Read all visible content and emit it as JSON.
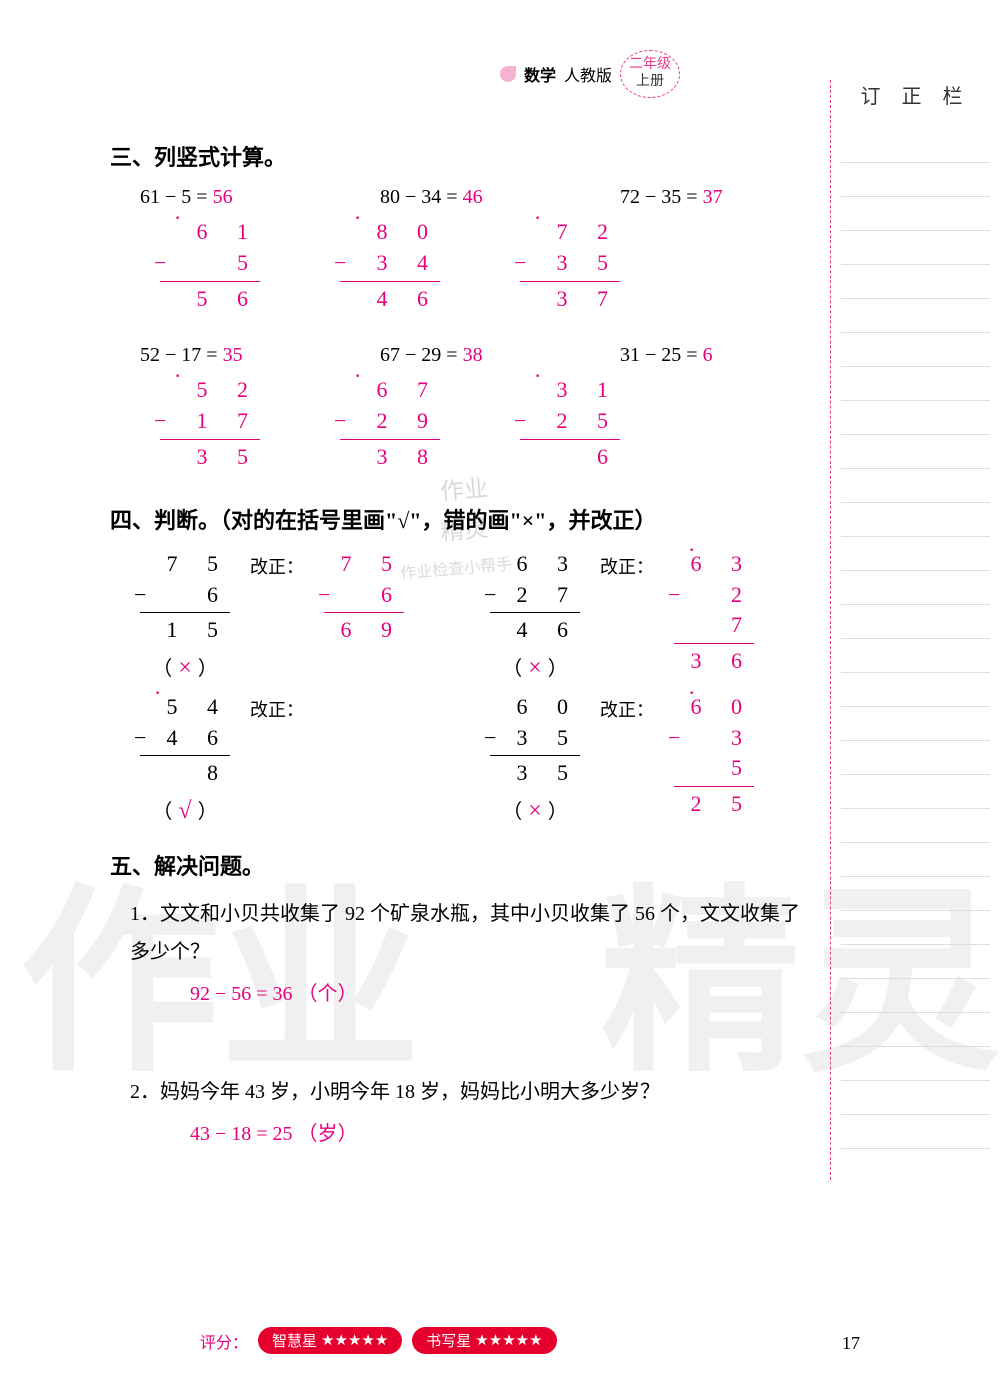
{
  "header": {
    "subject": "数学",
    "edition": "人教版",
    "grade": "二年级",
    "volume": "上册"
  },
  "sidebar_title": "订 正 栏",
  "section3": {
    "title": "三、列竖式计算。",
    "problems": [
      [
        {
          "eq": "61 − 5 =",
          "ans": "56",
          "top": "6 1",
          "mid_sign": "−",
          "mid": "5",
          "bot": "5 6",
          "borrow": true
        },
        {
          "eq": "80 − 34 =",
          "ans": "46",
          "top": "8 0",
          "mid_sign": "−",
          "mid": "3 4",
          "bot": "4 6",
          "borrow": true
        },
        {
          "eq": "72 − 35 =",
          "ans": "37",
          "top": "7 2",
          "mid_sign": "−",
          "mid": "3 5",
          "bot": "3 7",
          "borrow": true
        }
      ],
      [
        {
          "eq": "52 − 17 =",
          "ans": "35",
          "top": "5 2",
          "mid_sign": "−",
          "mid": "1 7",
          "bot": "3 5",
          "borrow": true
        },
        {
          "eq": "67 − 29 =",
          "ans": "38",
          "top": "6 7",
          "mid_sign": "−",
          "mid": "2 9",
          "bot": "3 8",
          "borrow": true
        },
        {
          "eq": "31 − 25 =",
          "ans": "6",
          "top": "3 1",
          "mid_sign": "−",
          "mid": "2 5",
          "bot": "6",
          "borrow": true
        }
      ]
    ]
  },
  "section4": {
    "title": "四、判断。（对的在括号里画\"√\"，错的画\"×\"，并改正）",
    "correction_label": "改正：",
    "rows": [
      [
        {
          "orig": {
            "top": "7  5",
            "mid_sign": "−",
            "mid": "6   ",
            "bot": "1  5"
          },
          "corr": {
            "top": "7 5",
            "mid_sign": "−",
            "mid": "6",
            "bot": "6 9",
            "borrow": false
          },
          "mark": "×"
        },
        {
          "orig": {
            "top": "6  3",
            "mid_sign": "−",
            "mid": "2  7",
            "bot": "4  6"
          },
          "corr": {
            "top": "6 3",
            "mid_sign": "−",
            "mid": "2 7",
            "bot": "3 6",
            "borrow": true
          },
          "mark": "×"
        }
      ],
      [
        {
          "orig": {
            "top": "5  4",
            "mid_sign": "−",
            "mid": "4  6",
            "bot": "8",
            "borrow": true
          },
          "corr": null,
          "mark": "√"
        },
        {
          "orig": {
            "top": "6  0",
            "mid_sign": "−",
            "mid": "3  5",
            "bot": "3  5"
          },
          "corr": {
            "top": "6 0",
            "mid_sign": "−",
            "mid": "3 5",
            "bot": "2 5",
            "borrow": true
          },
          "mark": "×"
        }
      ]
    ]
  },
  "section5": {
    "title": "五、解决问题。",
    "problems": [
      {
        "text": "1．文文和小贝共收集了 92 个矿泉水瓶，其中小贝收集了 56 个，文文收集了多少个？",
        "answer": "92 − 56 = 36 （个）"
      },
      {
        "text": "2．妈妈今年 43 岁，小明今年 18 岁，妈妈比小明大多少岁？",
        "answer": "43 − 18 = 25 （岁）"
      }
    ]
  },
  "footer": {
    "label": "评分：",
    "pill1": "智慧星",
    "pill2": "书写星",
    "stars": "★★★★★"
  },
  "page_num": "17",
  "wm_small1": "作业",
  "wm_small2": "精灵",
  "wm_small3": "作业检查小帮手"
}
